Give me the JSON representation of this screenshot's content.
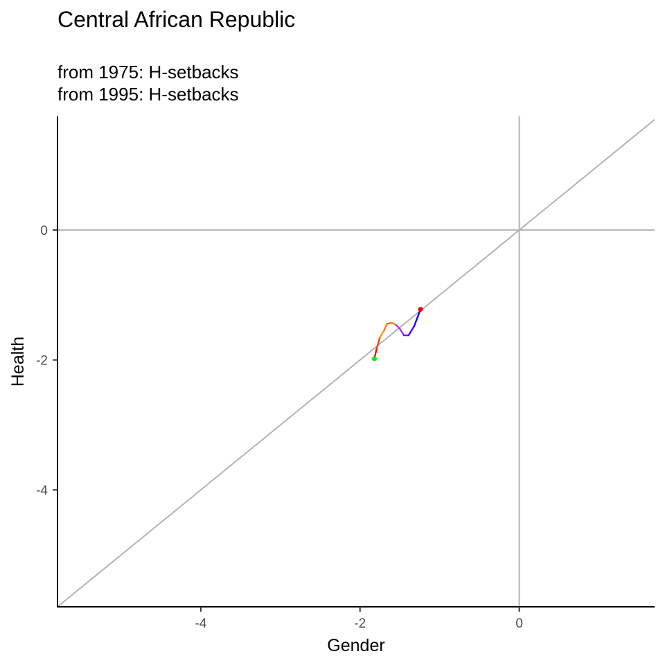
{
  "chart_data": {
    "type": "line",
    "title": "Central African Republic",
    "subtitle_lines": [
      "from 1975:  H-setbacks",
      "from 1995:  H-setbacks"
    ],
    "xlabel": "Gender",
    "ylabel": "Health",
    "xlim": [
      -5.8,
      1.7
    ],
    "ylim": [
      -5.8,
      1.75
    ],
    "x_ticks": [
      -4,
      -2,
      0
    ],
    "y_ticks": [
      0,
      -2,
      -4
    ],
    "grid": false,
    "reference_lines": {
      "horizontal_y": 0,
      "vertical_x": 0,
      "diagonal": "y = x",
      "color": "#b3b3b3"
    },
    "series": [
      {
        "points": [
          {
            "x": -1.82,
            "y": -1.98,
            "color": "#ff0000"
          },
          {
            "x": -1.79,
            "y": -1.82,
            "color": "#ff0000"
          },
          {
            "x": -1.75,
            "y": -1.65,
            "color": "#ff4000"
          },
          {
            "x": -1.7,
            "y": -1.55,
            "color": "#ff9900"
          },
          {
            "x": -1.66,
            "y": -1.44,
            "color": "#ff8000"
          },
          {
            "x": -1.6,
            "y": -1.43,
            "color": "#ff6000"
          },
          {
            "x": -1.55,
            "y": -1.46,
            "color": "#ff8c00"
          },
          {
            "x": -1.5,
            "y": -1.52,
            "color": "#cc33ff"
          },
          {
            "x": -1.45,
            "y": -1.62,
            "color": "#9933ff"
          },
          {
            "x": -1.39,
            "y": -1.62,
            "color": "#8000ff"
          },
          {
            "x": -1.32,
            "y": -1.48,
            "color": "#4400ff"
          },
          {
            "x": -1.28,
            "y": -1.35,
            "color": "#2200ff"
          },
          {
            "x": -1.24,
            "y": -1.22,
            "color": "#0000ff"
          }
        ],
        "start_marker": {
          "x": -1.82,
          "y": -1.98,
          "color": "#00ee00"
        },
        "end_marker": {
          "x": -1.24,
          "y": -1.22,
          "color": "#ee0000"
        }
      }
    ]
  }
}
